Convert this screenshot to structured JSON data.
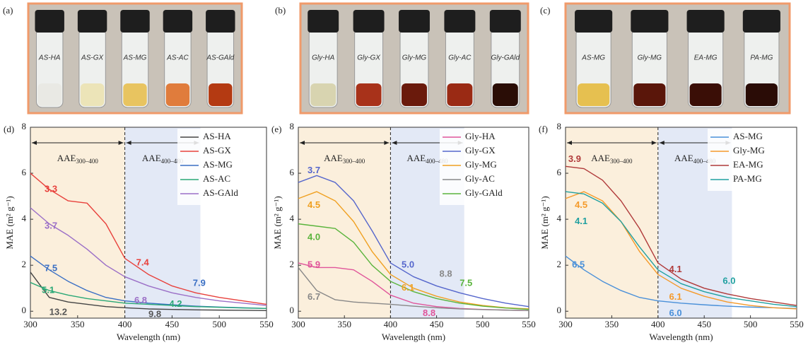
{
  "photos": [
    {
      "label": "(a)",
      "vials": [
        {
          "label": "AS-HA",
          "liquid": "#e9e9e4"
        },
        {
          "label": "AS-GX",
          "liquid": "#ece4b8"
        },
        {
          "label": "AS-MG",
          "liquid": "#e8c460"
        },
        {
          "label": "AS-AC",
          "liquid": "#e07c3c"
        },
        {
          "label": "AS-GAld",
          "liquid": "#b43a12"
        }
      ]
    },
    {
      "label": "(b)",
      "vials": [
        {
          "label": "Gly-HA",
          "liquid": "#d8d4b0"
        },
        {
          "label": "Gly-GX",
          "liquid": "#a8321a"
        },
        {
          "label": "Gly-MG",
          "liquid": "#6a1a0c"
        },
        {
          "label": "Gly-AC",
          "liquid": "#9a2a14"
        },
        {
          "label": "Gly-GAld",
          "liquid": "#2a0d06"
        }
      ]
    },
    {
      "label": "(c)",
      "vials": [
        {
          "label": "AS-MG",
          "liquid": "#e6c050"
        },
        {
          "label": "Gly-MG",
          "liquid": "#5a160a"
        },
        {
          "label": "EA-MG",
          "liquid": "#3a0e06"
        },
        {
          "label": "PA-MG",
          "liquid": "#2a0c06"
        }
      ]
    }
  ],
  "chart_data": [
    {
      "type": "line",
      "panel": "(d)",
      "xlabel": "Wavelength (nm)",
      "ylabel": "MAE (m² g⁻¹)",
      "x": [
        300,
        320,
        340,
        360,
        380,
        400,
        425,
        450,
        475,
        500,
        525,
        550
      ],
      "xlim": [
        300,
        550
      ],
      "xticks": [
        300,
        350,
        400,
        450,
        500,
        550
      ],
      "ylim": [
        -0.3,
        8
      ],
      "yticks": [
        0,
        2,
        4,
        6,
        8
      ],
      "regions": [
        {
          "from": 300,
          "to": 400,
          "color": "#fbefdc",
          "label": "AAE",
          "sub": "300–400"
        },
        {
          "from": 400,
          "to": 480,
          "color": "#e3e9f6",
          "label": "AAE",
          "sub": "400–480"
        }
      ],
      "series": [
        {
          "name": "AS-HA",
          "color": "#444444",
          "values": [
            1.7,
            0.6,
            0.4,
            0.3,
            0.2,
            0.15,
            0.1,
            0.08,
            0.06,
            0.05,
            0.04,
            0.03
          ]
        },
        {
          "name": "AS-GX",
          "color": "#e8413c",
          "values": [
            6.0,
            5.3,
            4.8,
            4.7,
            3.8,
            2.3,
            1.6,
            1.1,
            0.8,
            0.6,
            0.45,
            0.3
          ]
        },
        {
          "name": "AS-MG",
          "color": "#3a6fc4",
          "values": [
            2.4,
            1.8,
            1.3,
            0.9,
            0.6,
            0.45,
            0.35,
            0.28,
            0.22,
            0.18,
            0.15,
            0.12
          ]
        },
        {
          "name": "AS-AC",
          "color": "#2aa876",
          "values": [
            1.25,
            0.9,
            0.7,
            0.55,
            0.45,
            0.35,
            0.3,
            0.25,
            0.2,
            0.17,
            0.14,
            0.12
          ]
        },
        {
          "name": "AS-GAld",
          "color": "#9b6fc7",
          "values": [
            4.5,
            3.8,
            3.3,
            2.7,
            2.0,
            1.5,
            1.1,
            0.8,
            0.6,
            0.45,
            0.35,
            0.25
          ]
        }
      ],
      "annotations": [
        {
          "text": "3.3",
          "color": "#e8413c"
        },
        {
          "text": "3.7",
          "color": "#9b6fc7"
        },
        {
          "text": "7.5",
          "color": "#3a6fc4"
        },
        {
          "text": "5.1",
          "color": "#2aa876"
        },
        {
          "text": "13.2",
          "color": "#555555"
        },
        {
          "text": "7.4",
          "color": "#e8413c"
        },
        {
          "text": "6.8",
          "color": "#9b6fc7"
        },
        {
          "text": "4.2",
          "color": "#2aa876"
        },
        {
          "text": "7.9",
          "color": "#3a6fc4"
        },
        {
          "text": "9.8",
          "color": "#555555"
        }
      ]
    },
    {
      "type": "line",
      "panel": "(e)",
      "xlabel": "Wavelength (nm)",
      "ylabel": "MAE (m² g⁻¹)",
      "x": [
        300,
        320,
        340,
        360,
        380,
        400,
        425,
        450,
        475,
        500,
        525,
        550
      ],
      "xlim": [
        300,
        550
      ],
      "xticks": [
        300,
        350,
        400,
        450,
        500,
        550
      ],
      "ylim": [
        -0.3,
        8
      ],
      "yticks": [
        0,
        2,
        4,
        6,
        8
      ],
      "regions": [
        {
          "from": 300,
          "to": 400,
          "color": "#fbefdc",
          "label": "AAE",
          "sub": "300–400"
        },
        {
          "from": 400,
          "to": 480,
          "color": "#e3e9f6",
          "label": "AAE",
          "sub": "400–480"
        }
      ],
      "series": [
        {
          "name": "Gly-HA",
          "color": "#e0559a",
          "values": [
            2.1,
            1.9,
            1.9,
            1.8,
            1.3,
            0.7,
            0.35,
            0.2,
            0.12,
            0.08,
            0.05,
            0.03
          ]
        },
        {
          "name": "Gly-GX",
          "color": "#5566cc",
          "values": [
            5.6,
            5.9,
            5.6,
            4.8,
            3.5,
            2.1,
            1.5,
            1.1,
            0.8,
            0.55,
            0.35,
            0.2
          ]
        },
        {
          "name": "Gly-MG",
          "color": "#f0a020",
          "values": [
            4.9,
            5.2,
            4.8,
            3.9,
            2.6,
            1.6,
            1.0,
            0.65,
            0.4,
            0.25,
            0.15,
            0.1
          ]
        },
        {
          "name": "Gly-AC",
          "color": "#888888",
          "values": [
            1.9,
            0.9,
            0.5,
            0.4,
            0.35,
            0.3,
            0.22,
            0.15,
            0.1,
            0.07,
            0.05,
            0.03
          ]
        },
        {
          "name": "Gly-GAld",
          "color": "#5ab43c",
          "values": [
            3.8,
            3.7,
            3.6,
            3.0,
            2.0,
            1.3,
            0.85,
            0.55,
            0.35,
            0.22,
            0.14,
            0.08
          ]
        }
      ],
      "annotations": [
        {
          "text": "3.7",
          "color": "#5566cc"
        },
        {
          "text": "4.5",
          "color": "#f0a020"
        },
        {
          "text": "4.0",
          "color": "#5ab43c"
        },
        {
          "text": "5.9",
          "color": "#e0559a"
        },
        {
          "text": "6.7",
          "color": "#888888"
        },
        {
          "text": "5.0",
          "color": "#5566cc"
        },
        {
          "text": "6.1",
          "color": "#f0a020"
        },
        {
          "text": "8.8",
          "color": "#888888"
        },
        {
          "text": "7.5",
          "color": "#5ab43c"
        },
        {
          "text": "8.8",
          "color": "#e0559a"
        }
      ]
    },
    {
      "type": "line",
      "panel": "(f)",
      "xlabel": "Wavelength (nm)",
      "ylabel": "MAE (m² g⁻¹)",
      "x": [
        300,
        320,
        340,
        360,
        380,
        400,
        425,
        450,
        475,
        500,
        525,
        550
      ],
      "xlim": [
        300,
        550
      ],
      "xticks": [
        300,
        350,
        400,
        450,
        500,
        550
      ],
      "ylim": [
        -0.3,
        8
      ],
      "yticks": [
        0,
        2,
        4,
        6,
        8
      ],
      "regions": [
        {
          "from": 300,
          "to": 400,
          "color": "#fbefdc",
          "label": "AAE",
          "sub": "300–400"
        },
        {
          "from": 400,
          "to": 480,
          "color": "#e3e9f6",
          "label": "AAE",
          "sub": "400–480"
        }
      ],
      "series": [
        {
          "name": "AS-MG",
          "color": "#4a90d9",
          "values": [
            2.4,
            1.8,
            1.3,
            0.9,
            0.6,
            0.45,
            0.35,
            0.28,
            0.22,
            0.18,
            0.15,
            0.12
          ]
        },
        {
          "name": "Gly-MG",
          "color": "#f59a2a",
          "values": [
            4.9,
            5.2,
            4.8,
            3.9,
            2.6,
            1.6,
            1.0,
            0.65,
            0.4,
            0.25,
            0.15,
            0.1
          ]
        },
        {
          "name": "EA-MG",
          "color": "#b03a3a",
          "values": [
            6.3,
            6.2,
            5.7,
            4.8,
            3.6,
            2.1,
            1.4,
            1.0,
            0.75,
            0.55,
            0.4,
            0.25
          ]
        },
        {
          "name": "PA-MG",
          "color": "#20a0a0",
          "values": [
            5.2,
            5.1,
            4.7,
            3.9,
            2.8,
            1.8,
            1.2,
            0.85,
            0.6,
            0.45,
            0.3,
            0.2
          ]
        }
      ],
      "annotations": [
        {
          "text": "3.9",
          "color": "#b03a3a"
        },
        {
          "text": "4.5",
          "color": "#f59a2a"
        },
        {
          "text": "4.1",
          "color": "#20a0a0"
        },
        {
          "text": "6.5",
          "color": "#4a90d9"
        },
        {
          "text": "4.1",
          "color": "#b03a3a"
        },
        {
          "text": "6.1",
          "color": "#f59a2a"
        },
        {
          "text": "6.0",
          "color": "#20a0a0"
        },
        {
          "text": "6.0",
          "color": "#4a90d9"
        }
      ]
    }
  ]
}
